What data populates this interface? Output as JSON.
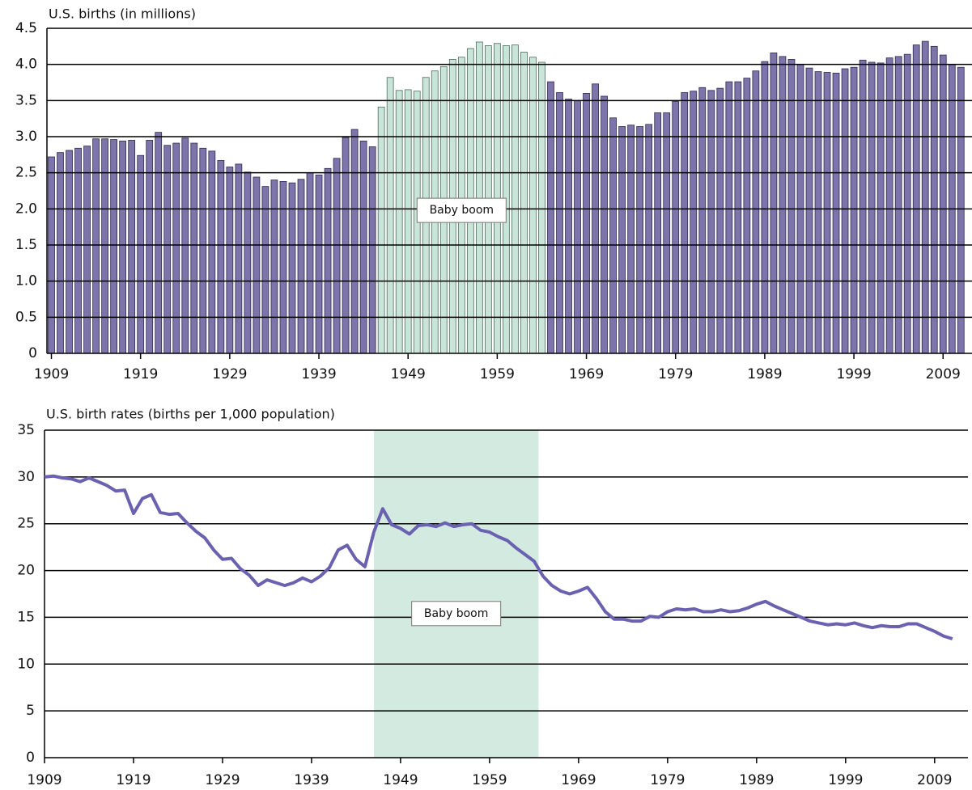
{
  "chart_data": [
    {
      "type": "bar",
      "title": "U.S. births (in millions)",
      "x": [
        1909,
        1910,
        1911,
        1912,
        1913,
        1914,
        1915,
        1916,
        1917,
        1918,
        1919,
        1920,
        1921,
        1922,
        1923,
        1924,
        1925,
        1926,
        1927,
        1928,
        1929,
        1930,
        1931,
        1932,
        1933,
        1934,
        1935,
        1936,
        1937,
        1938,
        1939,
        1940,
        1941,
        1942,
        1943,
        1944,
        1945,
        1946,
        1947,
        1948,
        1949,
        1950,
        1951,
        1952,
        1953,
        1954,
        1955,
        1956,
        1957,
        1958,
        1959,
        1960,
        1961,
        1962,
        1963,
        1964,
        1965,
        1966,
        1967,
        1968,
        1969,
        1970,
        1971,
        1972,
        1973,
        1974,
        1975,
        1976,
        1977,
        1978,
        1979,
        1980,
        1981,
        1982,
        1983,
        1984,
        1985,
        1986,
        1987,
        1988,
        1989,
        1990,
        1991,
        1992,
        1993,
        1994,
        1995,
        1996,
        1997,
        1998,
        1999,
        2000,
        2001,
        2002,
        2003,
        2004,
        2005,
        2006,
        2007,
        2008,
        2009,
        2010,
        2011
      ],
      "series": [
        {
          "color": "#7c74aa",
          "values": [
            2.72,
            2.78,
            2.81,
            2.84,
            2.87,
            2.97,
            2.97,
            2.96,
            2.94,
            2.95,
            2.74,
            2.95,
            3.06,
            2.88,
            2.91,
            2.98,
            2.91,
            2.84,
            2.8,
            2.67,
            2.58,
            2.62,
            2.51,
            2.44,
            2.31,
            2.4,
            2.38,
            2.36,
            2.41,
            2.5,
            2.47,
            2.56,
            2.7,
            2.99,
            3.1,
            2.94,
            2.86,
            3.41,
            3.82,
            3.64,
            3.65,
            3.63,
            3.82,
            3.91,
            3.97,
            4.07,
            4.1,
            4.22,
            4.31,
            4.26,
            4.29,
            4.26,
            4.27,
            4.17,
            4.1,
            4.03,
            3.76,
            3.61,
            3.52,
            3.5,
            3.6,
            3.73,
            3.56,
            3.26,
            3.14,
            3.16,
            3.14,
            3.17,
            3.33,
            3.33,
            3.49,
            3.61,
            3.63,
            3.68,
            3.64,
            3.67,
            3.76,
            3.76,
            3.81,
            3.91,
            4.04,
            4.16,
            4.11,
            4.07,
            4.0,
            3.95,
            3.9,
            3.89,
            3.88,
            3.94,
            3.96,
            4.06,
            4.03,
            4.02,
            4.09,
            4.11,
            4.14,
            4.27,
            4.32,
            4.25,
            4.13,
            4.0,
            3.96
          ]
        }
      ],
      "highlight": {
        "label": "Baby boom",
        "xlim": [
          1946,
          1964
        ],
        "color": "#c9e4d8"
      },
      "xlim": [
        1908.5,
        2011.7
      ],
      "xticks": [
        1909,
        1919,
        1929,
        1939,
        1949,
        1959,
        1969,
        1979,
        1989,
        1999,
        2009
      ],
      "ylim": [
        0,
        4.5
      ],
      "yticks": [
        0,
        0.5,
        {
          "value": 1,
          "label": "1.0"
        },
        1.5,
        {
          "value": 2,
          "label": "2.0"
        },
        2.5,
        {
          "value": 3,
          "label": "3.0"
        },
        3.5,
        {
          "value": 4,
          "label": "4.0"
        },
        4.5
      ],
      "grid": true
    },
    {
      "type": "line",
      "title": "U.S. birth rates (births per 1,000 population)",
      "x": [
        1909,
        1910,
        1911,
        1912,
        1913,
        1914,
        1915,
        1916,
        1917,
        1918,
        1919,
        1920,
        1921,
        1922,
        1923,
        1924,
        1925,
        1926,
        1927,
        1928,
        1929,
        1930,
        1931,
        1932,
        1933,
        1934,
        1935,
        1936,
        1937,
        1938,
        1939,
        1940,
        1941,
        1942,
        1943,
        1944,
        1945,
        1946,
        1947,
        1948,
        1949,
        1950,
        1951,
        1952,
        1953,
        1954,
        1955,
        1956,
        1957,
        1958,
        1959,
        1960,
        1961,
        1962,
        1963,
        1964,
        1965,
        1966,
        1967,
        1968,
        1969,
        1970,
        1971,
        1972,
        1973,
        1974,
        1975,
        1976,
        1977,
        1978,
        1979,
        1980,
        1981,
        1982,
        1983,
        1984,
        1985,
        1986,
        1987,
        1988,
        1989,
        1990,
        1991,
        1992,
        1993,
        1994,
        1995,
        1996,
        1997,
        1998,
        1999,
        2000,
        2001,
        2002,
        2003,
        2004,
        2005,
        2006,
        2007,
        2008,
        2009,
        2010,
        2011
      ],
      "series": [
        {
          "color": "#6a62b0",
          "values": [
            30.0,
            30.1,
            29.9,
            29.8,
            29.5,
            29.9,
            29.5,
            29.1,
            28.5,
            28.6,
            26.1,
            27.7,
            28.1,
            26.2,
            26.0,
            26.1,
            25.1,
            24.2,
            23.5,
            22.2,
            21.2,
            21.3,
            20.2,
            19.5,
            18.4,
            19.0,
            18.7,
            18.4,
            18.7,
            19.2,
            18.8,
            19.4,
            20.3,
            22.2,
            22.7,
            21.2,
            20.4,
            24.1,
            26.6,
            24.9,
            24.5,
            23.9,
            24.8,
            24.9,
            24.7,
            25.1,
            24.7,
            24.9,
            25.0,
            24.3,
            24.1,
            23.6,
            23.2,
            22.4,
            21.7,
            21.0,
            19.4,
            18.4,
            17.8,
            17.5,
            17.8,
            18.2,
            17.0,
            15.6,
            14.8,
            14.8,
            14.6,
            14.6,
            15.1,
            15.0,
            15.6,
            15.9,
            15.8,
            15.9,
            15.6,
            15.6,
            15.8,
            15.6,
            15.7,
            16.0,
            16.4,
            16.7,
            16.2,
            15.8,
            15.4,
            15.0,
            14.6,
            14.4,
            14.2,
            14.3,
            14.2,
            14.4,
            14.1,
            13.9,
            14.1,
            14.0,
            14.0,
            14.3,
            14.3,
            13.9,
            13.5,
            13.0,
            12.7
          ]
        }
      ],
      "highlight": {
        "label": "Baby boom",
        "xlim": [
          1946,
          1964.5
        ],
        "color": "#d3eae1"
      },
      "xlim": [
        1909,
        2012.2
      ],
      "xticks": [
        1909,
        1919,
        1929,
        1939,
        1949,
        1959,
        1969,
        1979,
        1989,
        1999,
        2009
      ],
      "ylim": [
        0,
        35
      ],
      "yticks": [
        0,
        5,
        10,
        15,
        20,
        25,
        30,
        35
      ],
      "grid": true
    }
  ]
}
